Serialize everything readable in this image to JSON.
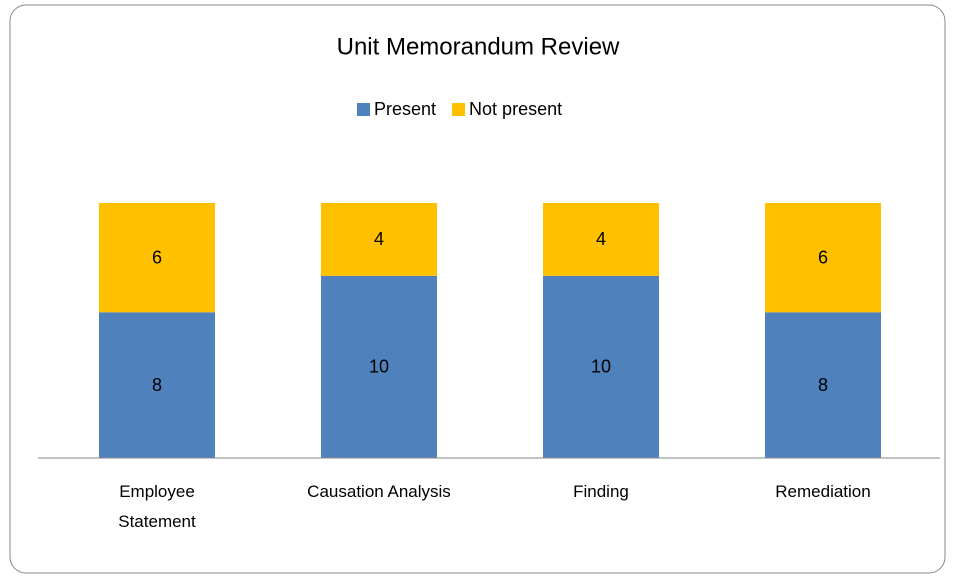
{
  "chart_data": {
    "type": "stacked_bar",
    "title": "Unit Memorandum Review",
    "categories": [
      "Employee Statement",
      "Causation Analysis",
      "Finding",
      "Remediation"
    ],
    "series": [
      {
        "name": "Present",
        "color": "#4f81bd",
        "values": [
          8,
          10,
          10,
          8
        ]
      },
      {
        "name": "Not present",
        "color": "#ffc000",
        "values": [
          6,
          4,
          4,
          6
        ]
      }
    ],
    "legend": "top"
  }
}
